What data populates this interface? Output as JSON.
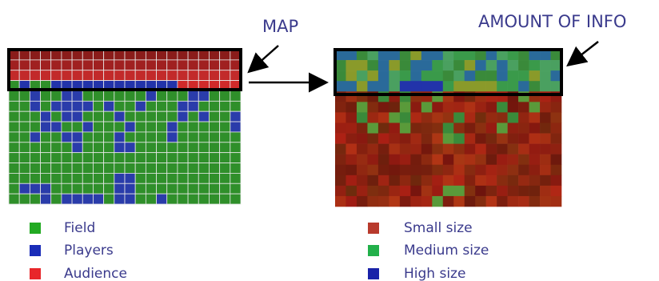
{
  "labels": {
    "map": "MAP",
    "amount": "AMOUNT OF INFO"
  },
  "legend_left": [
    "Field",
    "Players",
    "Audience"
  ],
  "legend_right": [
    "Small size",
    "Medium size",
    "High size"
  ]
}
